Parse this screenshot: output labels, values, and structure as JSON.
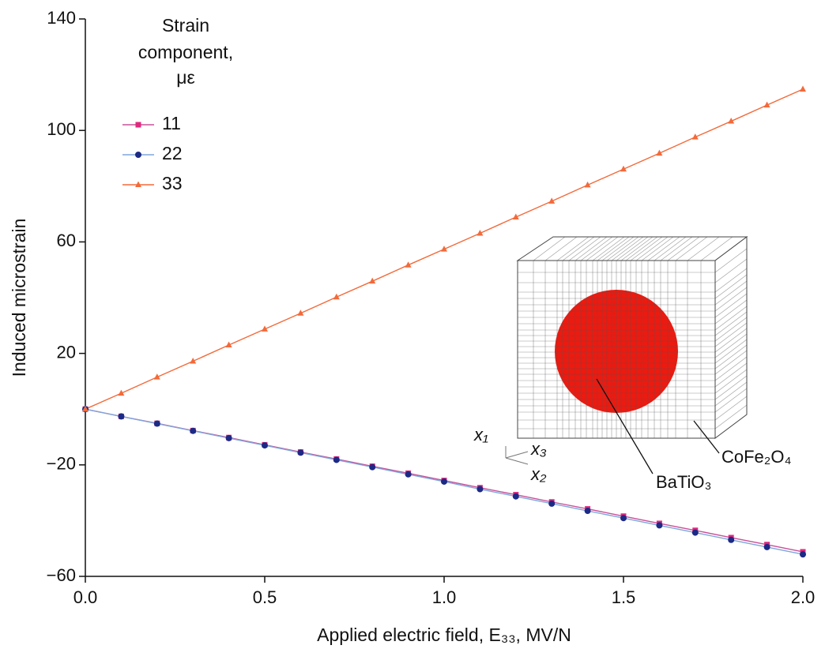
{
  "chart_data": {
    "type": "line",
    "ylabel": "Induced microstrain",
    "xlabel": "Applied electric field, E₃₃, MV/N",
    "legend_title": [
      "Strain",
      "component,",
      "με"
    ],
    "x": [
      0,
      0.1,
      0.2,
      0.3,
      0.4,
      0.5,
      0.6,
      0.7,
      0.8,
      0.9,
      1.0,
      1.1,
      1.2,
      1.3,
      1.4,
      1.5,
      1.6,
      1.7,
      1.8,
      1.9,
      2.0
    ],
    "xlim": [
      0,
      2.0
    ],
    "xticks": [
      {
        "value": 0,
        "label": "0.0"
      },
      0.5,
      {
        "value": 1.0,
        "label": "1.0"
      },
      1.5,
      {
        "value": 2.0,
        "label": "2.0"
      }
    ],
    "ylim": [
      -60,
      140
    ],
    "yticks": [
      {
        "value": -60,
        "label": "−60"
      },
      {
        "value": -20,
        "label": "−20"
      },
      20,
      60,
      100,
      140
    ],
    "grid": false,
    "series": [
      {
        "name": "11",
        "color": "#e0287f",
        "line_color": "#c8509a",
        "marker": "square",
        "values": [
          0,
          -2.6,
          -5.1,
          -7.7,
          -10.2,
          -12.8,
          -15.4,
          -17.9,
          -20.5,
          -23.0,
          -25.6,
          -28.2,
          -30.7,
          -33.3,
          -35.8,
          -38.4,
          -41.0,
          -43.5,
          -46.1,
          -48.6,
          -51.2
        ]
      },
      {
        "name": "22",
        "color": "#1c2a86",
        "line_color": "#7ea6dc",
        "marker": "circle",
        "values": [
          0,
          -2.6,
          -5.2,
          -7.8,
          -10.4,
          -13.0,
          -15.6,
          -18.2,
          -20.8,
          -23.4,
          -26.0,
          -28.7,
          -31.3,
          -33.9,
          -36.5,
          -39.1,
          -41.7,
          -44.3,
          -46.9,
          -49.5,
          -52.1
        ]
      },
      {
        "name": "33",
        "color": "#f36a3a",
        "line_color": "#f36a3a",
        "marker": "triangle",
        "values": [
          0,
          5.7,
          11.5,
          17.2,
          23.0,
          28.7,
          34.4,
          40.2,
          45.9,
          51.7,
          57.4,
          63.1,
          68.9,
          74.6,
          80.4,
          86.1,
          91.8,
          97.6,
          103.3,
          109.1,
          114.8
        ]
      }
    ],
    "annotations": {
      "x1": "x₁",
      "x3": "x₃",
      "x2": "x₂",
      "matrix": "CoFe₂O₄",
      "inclusion": "BaTiO₃"
    }
  }
}
